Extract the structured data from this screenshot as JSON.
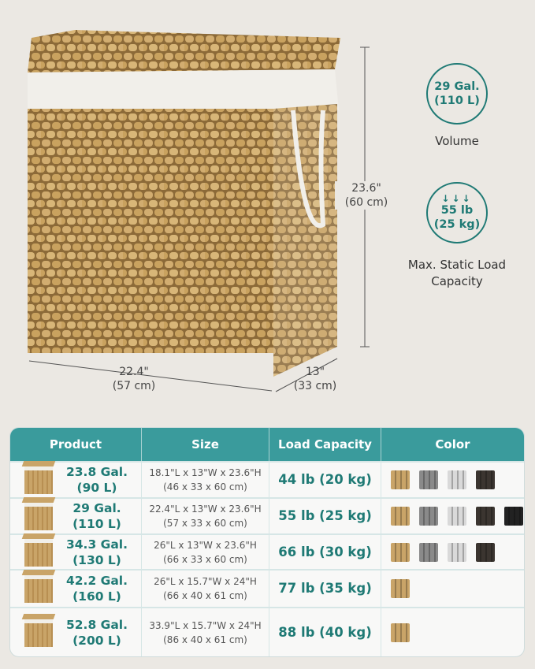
{
  "dimensions": {
    "height_in": "23.6\"",
    "height_cm": "(60 cm)",
    "width_in": "22.4\"",
    "width_cm": "(57 cm)",
    "depth_in": "13\"",
    "depth_cm": "(33 cm)"
  },
  "volume_badge": {
    "line1": "29 Gal.",
    "line2": "(110 L)",
    "caption": "Volume"
  },
  "load_badge": {
    "icon": "down-arrows-icon",
    "arrows": "↓↓↓",
    "line1": "55 lb",
    "line2": "(25 kg)",
    "caption_line1": "Max. Static Load",
    "caption_line2": "Capacity"
  },
  "colors": {
    "accent": "#3a9b9c",
    "text_accent": "#1f7a75",
    "natural": "#c9a468",
    "grey": "#8a8a8a",
    "white": "#d9d9d9",
    "brown": "#3b3530",
    "black": "#222222"
  },
  "table": {
    "headers": [
      "Product",
      "Size",
      "Load Capacity",
      "Color"
    ],
    "rows": [
      {
        "gal": "23.8 Gal.",
        "liters": "(90 L)",
        "size_in": "18.1\"L x 13\"W x 23.6\"H",
        "size_cm": "(46 x 33 x 60 cm)",
        "load": "44 lb (20 kg)",
        "colors": [
          "natural",
          "grey",
          "white",
          "brown"
        ]
      },
      {
        "gal": "29 Gal.",
        "liters": "(110 L)",
        "size_in": "22.4\"L x 13\"W x 23.6\"H",
        "size_cm": "(57 x 33 x 60 cm)",
        "load": "55 lb (25 kg)",
        "colors": [
          "natural",
          "grey",
          "white",
          "brown",
          "black"
        ]
      },
      {
        "gal": "34.3 Gal.",
        "liters": "(130 L)",
        "size_in": "26\"L x 13\"W x 23.6\"H",
        "size_cm": "(66 x 33 x 60 cm)",
        "load": "66 lb (30 kg)",
        "colors": [
          "natural",
          "grey",
          "white",
          "brown"
        ]
      },
      {
        "gal": "42.2 Gal.",
        "liters": "(160 L)",
        "size_in": "26\"L x 15.7\"W x 24\"H",
        "size_cm": "(66 x 40 x 61 cm)",
        "load": "77 lb (35 kg)",
        "colors": [
          "natural"
        ]
      },
      {
        "gal": "52.8 Gal.",
        "liters": "(200 L)",
        "size_in": "33.9\"L x 15.7\"W x 24\"H",
        "size_cm": "(86 x 40 x 61 cm)",
        "load": "88 lb (40 kg)",
        "colors": [
          "natural"
        ]
      }
    ]
  }
}
